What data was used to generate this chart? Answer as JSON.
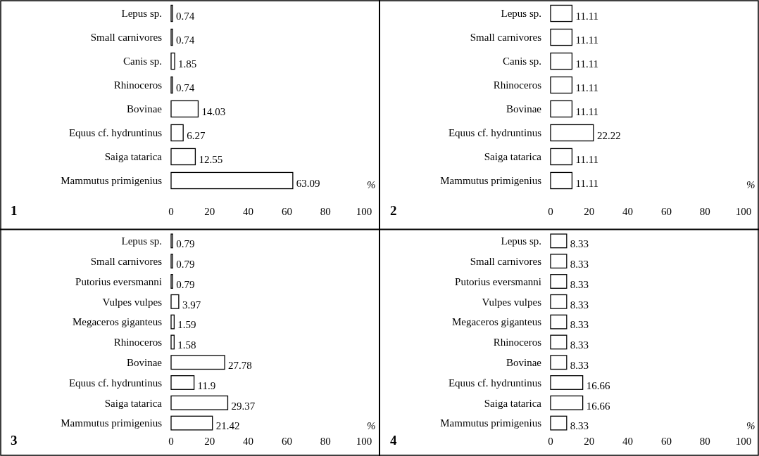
{
  "chart_data": [
    {
      "type": "bar",
      "orientation": "horizontal",
      "title": "1",
      "xlabel": "%",
      "categories": [
        "Lepus sp.",
        "Small carnivores",
        "Canis sp.",
        "Rhinoceros",
        "Bovinae",
        "Equus cf. hydruntinus",
        "Saiga tatarica",
        "Mammutus primigenius"
      ],
      "values": [
        0.74,
        0.74,
        1.85,
        0.74,
        14.03,
        6.27,
        12.55,
        63.09
      ],
      "color": "#ffffff",
      "data_labels": true,
      "xlim": [
        0,
        100
      ],
      "xticks": [
        0,
        20,
        40,
        60,
        80,
        100
      ]
    },
    {
      "type": "bar",
      "orientation": "horizontal",
      "title": "2",
      "xlabel": "%",
      "categories": [
        "Lepus sp.",
        "Small carnivores",
        "Canis sp.",
        "Rhinoceros",
        "Bovinae",
        "Equus cf. hydruntinus",
        "Saiga tatarica",
        "Mammutus primigenius"
      ],
      "values": [
        11.11,
        11.11,
        11.11,
        11.11,
        11.11,
        22.22,
        11.11,
        11.11
      ],
      "color": "#ffffff",
      "data_labels": true,
      "xlim": [
        0,
        100
      ],
      "xticks": [
        0,
        20,
        40,
        60,
        80,
        100
      ]
    },
    {
      "type": "bar",
      "orientation": "horizontal",
      "title": "3",
      "xlabel": "%",
      "categories": [
        "Lepus sp.",
        "Small carnivores",
        "Putorius eversmanni",
        "Vulpes vulpes",
        "Megaceros giganteus",
        "Rhinoceros",
        "Bovinae",
        "Equus cf. hydruntinus",
        "Saiga tatarica",
        "Mammutus primigenius"
      ],
      "values": [
        0.79,
        0.79,
        0.79,
        3.97,
        1.59,
        1.58,
        27.78,
        11.9,
        29.37,
        21.42
      ],
      "color": "#ffffff",
      "data_labels": true,
      "xlim": [
        0,
        100
      ],
      "xticks": [
        0,
        20,
        40,
        60,
        80,
        100
      ]
    },
    {
      "type": "bar",
      "orientation": "horizontal",
      "title": "4",
      "xlabel": "%",
      "categories": [
        "Lepus sp.",
        "Small carnivores",
        "Putorius eversmanni",
        "Vulpes vulpes",
        "Megaceros giganteus",
        "Rhinoceros",
        "Bovinae",
        "Equus cf. hydruntinus",
        "Saiga tatarica",
        "Mammutus primigenius"
      ],
      "values": [
        8.33,
        8.33,
        8.33,
        8.33,
        8.33,
        8.33,
        8.33,
        16.66,
        16.66,
        8.33
      ],
      "color": "#ffffff",
      "data_labels": true,
      "xlim": [
        0,
        100
      ],
      "xticks": [
        0,
        20,
        40,
        60,
        80,
        100
      ]
    }
  ]
}
